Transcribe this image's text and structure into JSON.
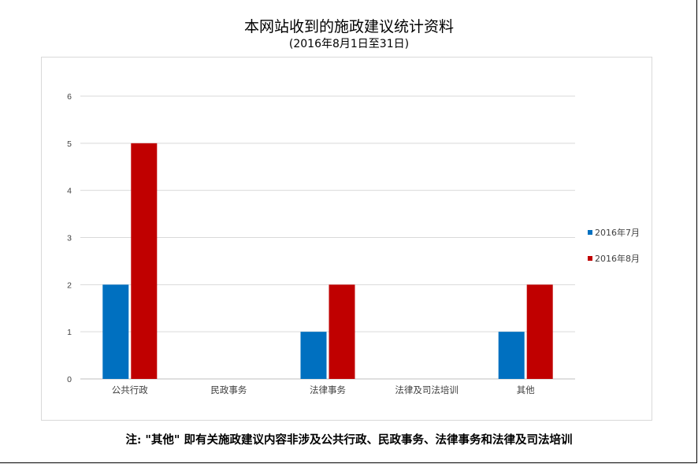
{
  "title": "本网站收到的施政建议统计资料",
  "subtitle": "(2016年8月1日至31日)",
  "note": "注: \"其他\" 即有关施政建议内容非涉及公共行政、民政事务、法律事务和法律及司法培训",
  "chart_data": {
    "type": "bar",
    "categories": [
      "公共行政",
      "民政事务",
      "法律事务",
      "法律及司法培训",
      "其他"
    ],
    "series": [
      {
        "name": "2016年7月",
        "values": [
          2,
          0,
          1,
          0,
          1
        ],
        "color": "#0070c0"
      },
      {
        "name": "2016年8月",
        "values": [
          5,
          0,
          2,
          0,
          2
        ],
        "color": "#c00000"
      }
    ],
    "ylim": [
      0,
      6
    ],
    "yticks": [
      "0",
      "1",
      "2",
      "3",
      "4",
      "5",
      "6"
    ],
    "grid": true,
    "legend": "right",
    "xlabel": "",
    "ylabel": ""
  }
}
